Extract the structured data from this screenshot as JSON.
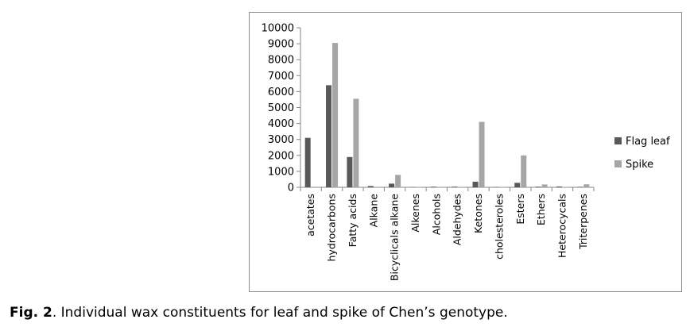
{
  "caption": {
    "label": "Fig. 2",
    "text": ". Individual wax constituents for leaf and spike of Chen’s genotype."
  },
  "chart_data": {
    "type": "bar",
    "categories": [
      "acetates",
      "hydrocarbons",
      "Fatty acids",
      "Alkane",
      "Bicyclicals alkane",
      "Alkenes",
      "Alcohols",
      "Aldehydes",
      "Ketones",
      "cholesteroles",
      "Esters",
      "Ethers",
      "Heterocycals",
      "Triterpenes"
    ],
    "series": [
      {
        "name": "Flag leaf",
        "color": "#595959",
        "values": [
          3100,
          6400,
          1900,
          80,
          230,
          15,
          40,
          40,
          350,
          20,
          280,
          40,
          50,
          30
        ]
      },
      {
        "name": "Spike",
        "color": "#a6a6a6",
        "values": [
          0,
          9050,
          5550,
          10,
          780,
          20,
          30,
          20,
          4100,
          20,
          2000,
          180,
          20,
          190
        ]
      }
    ],
    "title": "",
    "xlabel": "",
    "ylabel": "",
    "ylim": [
      0,
      10000
    ],
    "yticks": [
      0,
      1000,
      2000,
      3000,
      4000,
      5000,
      6000,
      7000,
      8000,
      9000,
      10000
    ],
    "grid": false,
    "legend_position": "right"
  }
}
